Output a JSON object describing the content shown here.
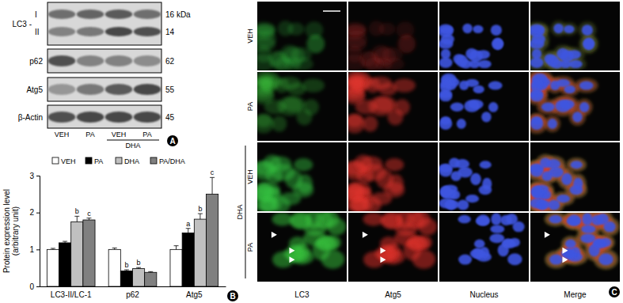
{
  "chart_data": {
    "type": "bar",
    "panel": "B",
    "y_label": [
      "Protein expression level",
      "(arbitrary unit)"
    ],
    "categories": [
      "LC3-II/LC-1",
      "p62",
      "Atg5"
    ],
    "series": [
      {
        "name": "VEH",
        "color": "#ffffff",
        "values": [
          1.0,
          1.0,
          1.0
        ],
        "errors": [
          0.03,
          0.04,
          0.1
        ],
        "annotations": [
          null,
          null,
          null
        ]
      },
      {
        "name": "PA",
        "color": "#000000",
        "values": [
          1.18,
          0.42,
          1.45
        ],
        "errors": [
          0.04,
          0.03,
          0.12
        ],
        "annotations": [
          null,
          "b",
          "a"
        ]
      },
      {
        "name": "DHA",
        "color": "#c0c0c0",
        "values": [
          1.75,
          0.48,
          1.82
        ],
        "errors": [
          0.15,
          0.03,
          0.15
        ],
        "annotations": [
          "b",
          "b",
          "b"
        ]
      },
      {
        "name": "PA/DHA",
        "color": "#808080",
        "values": [
          1.8,
          0.38,
          2.5
        ],
        "errors": [
          0.05,
          0.02,
          0.45
        ],
        "annotations": [
          "c",
          null,
          "c"
        ]
      }
    ],
    "ylim": [
      0,
      3
    ],
    "yticks": [
      0,
      1,
      2,
      3
    ],
    "legend": "top"
  },
  "blot": {
    "panel": "A",
    "rows": [
      {
        "label": "LC3 -",
        "bands": [
          "I",
          "II"
        ],
        "kda": [
          "16 kDa",
          "14"
        ]
      },
      {
        "label": "p62",
        "kda": [
          "62"
        ]
      },
      {
        "label": "Atg5",
        "kda": [
          "55"
        ]
      },
      {
        "label": "β-Actin",
        "kda": [
          "45"
        ]
      }
    ],
    "lanes": [
      "VEH",
      "PA",
      "VEH",
      "PA"
    ],
    "group": "DHA"
  },
  "micrograph": {
    "panel": "C",
    "columns": [
      "LC3",
      "Atg5",
      "Nucleus",
      "Merge"
    ],
    "rows": [
      "VEH",
      "PA",
      "VEH",
      "PA"
    ],
    "group": "DHA"
  }
}
